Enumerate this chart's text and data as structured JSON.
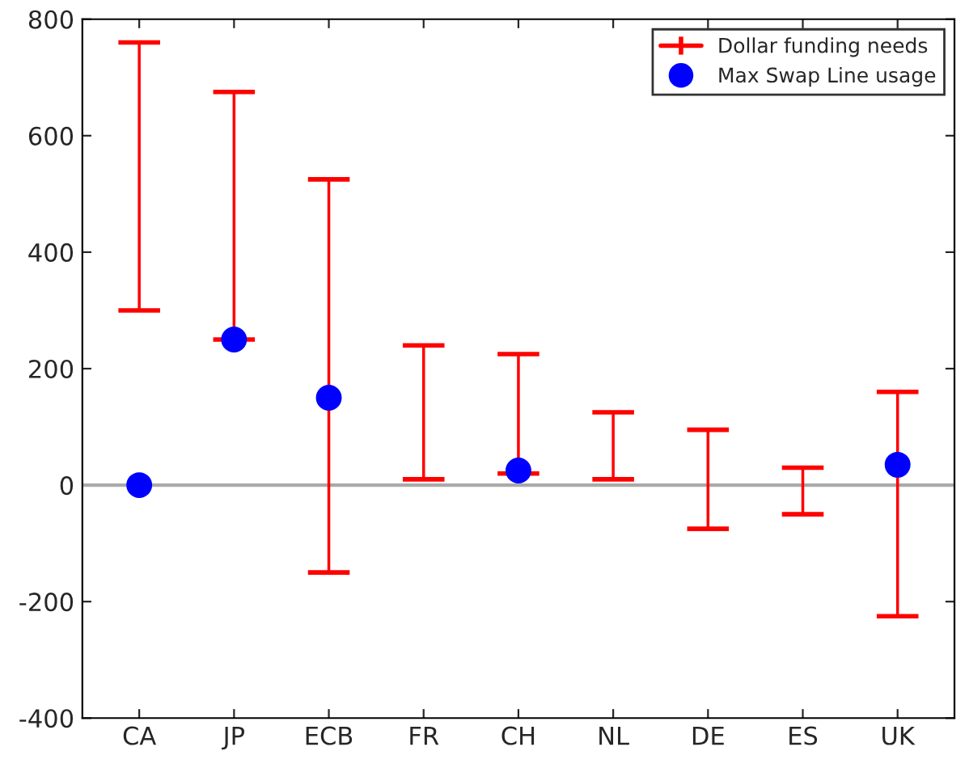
{
  "chart_data": {
    "type": "bar",
    "categories": [
      "CA",
      "JP",
      "ECB",
      "FR",
      "CH",
      "NL",
      "DE",
      "ES",
      "UK"
    ],
    "series": [
      {
        "name": "Dollar funding needs",
        "color": "#ff0000",
        "values": [
          460,
          425,
          675,
          230,
          205,
          115,
          170,
          80,
          385
        ],
        "base": [
          300,
          250,
          -150,
          10,
          20,
          10,
          -75,
          -50,
          -225
        ]
      },
      {
        "name": "Max Swap Line usage",
        "type": "scatter",
        "color": "#0000ff",
        "marker": "circle",
        "values": [
          0,
          250,
          150,
          null,
          25,
          null,
          null,
          null,
          35
        ]
      }
    ],
    "ylim": [
      -400,
      800
    ],
    "yticks": [
      -400,
      -200,
      0,
      200,
      400,
      600,
      800
    ],
    "ref_lines": [
      {
        "axis": "y",
        "value": 0,
        "color": "#aaaaaa"
      }
    ],
    "grid": false,
    "legend": "top right"
  }
}
